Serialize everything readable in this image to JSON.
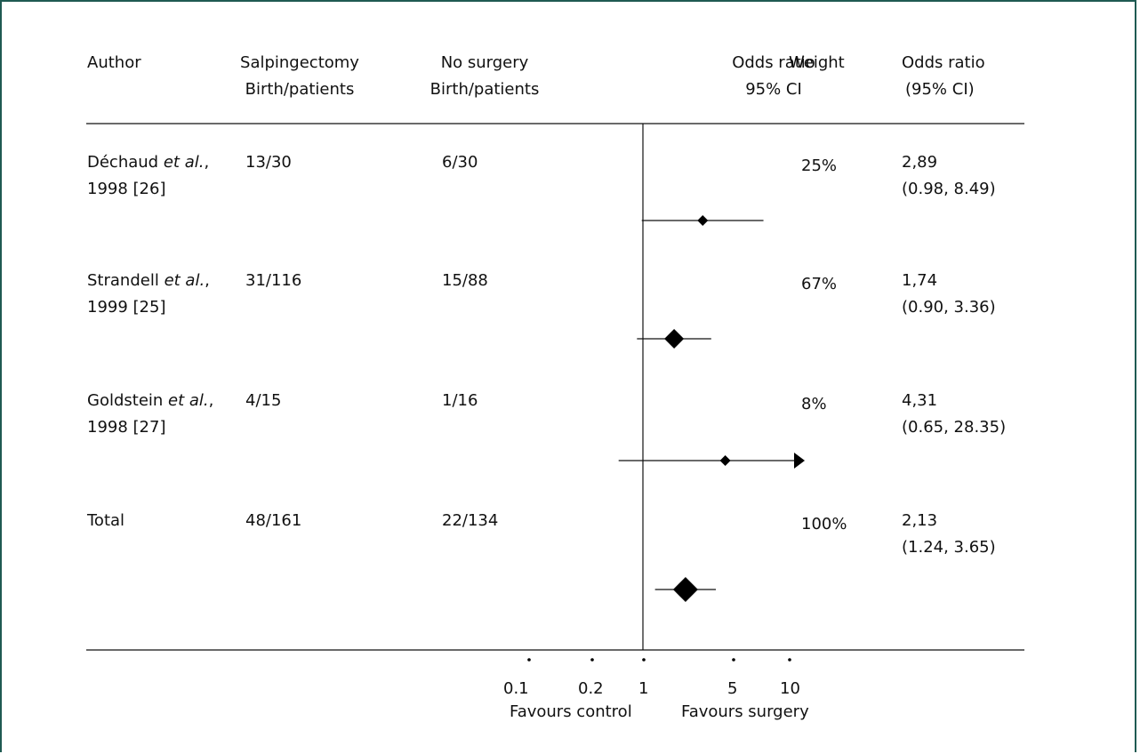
{
  "header": {
    "author": "Author",
    "salp_line1": "Salpingectomy",
    "salp_line2": "Birth/patients",
    "nosurg_line1": "No surgery",
    "nosurg_line2": "Birth/patients",
    "or_line1": "Odds ratio",
    "or_line2": "95% CI",
    "weight": "Weight",
    "orci_line1": "Odds ratio",
    "orci_line2": "(95% CI)"
  },
  "rows": [
    {
      "author": "Déchaud",
      "etal": "et al.",
      "author_suffix": ",",
      "year": "1998 [26]",
      "salp": "13/30",
      "nosurg": "6/30",
      "weight": "25%",
      "or": "2,89",
      "ci": "(0.98, 8.49)"
    },
    {
      "author": "Strandell",
      "etal": "et al.",
      "author_suffix": ",",
      "year": "1999 [25]",
      "salp": "31/116",
      "nosurg": "15/88",
      "weight": "67%",
      "or": "1,74",
      "ci": "(0.90, 3.36)"
    },
    {
      "author": "Goldstein",
      "etal": "et al.",
      "author_suffix": ",",
      "year": "1998 [27]",
      "salp": "4/15",
      "nosurg": "1/16",
      "weight": "8%",
      "or": "4,31",
      "ci": "(0.65, 28.35)"
    },
    {
      "author": "Total",
      "etal": "",
      "author_suffix": "",
      "year": "",
      "salp": "48/161",
      "nosurg": "22/134",
      "weight": "100%",
      "or": "2,13",
      "ci": "(1.24, 3.65)"
    }
  ],
  "axis": {
    "ticks": [
      "0.1",
      "0.2",
      "1",
      "5",
      "10"
    ],
    "favours_control": "Favours control",
    "favours_surgery": "Favours surgery"
  },
  "chart_data": {
    "type": "forest",
    "scale": "log",
    "xlim": [
      0.1,
      10
    ],
    "null_line": 1,
    "tick_values": [
      0.1,
      0.2,
      1,
      5,
      10
    ],
    "studies": [
      {
        "label": "Déchaud et al., 1998 [26]",
        "or": 2.89,
        "lo": 0.98,
        "hi": 8.49,
        "weight": 25,
        "marker": "small"
      },
      {
        "label": "Strandell et al., 1999 [25]",
        "or": 1.74,
        "lo": 0.9,
        "hi": 3.36,
        "weight": 67,
        "marker": "medium"
      },
      {
        "label": "Goldstein et al., 1998 [27]",
        "or": 4.31,
        "lo": 0.65,
        "hi": 28.35,
        "weight": 8,
        "marker": "small",
        "arrow_right": true
      },
      {
        "label": "Total",
        "or": 2.13,
        "lo": 1.24,
        "hi": 3.65,
        "weight": 100,
        "marker": "large"
      }
    ]
  }
}
